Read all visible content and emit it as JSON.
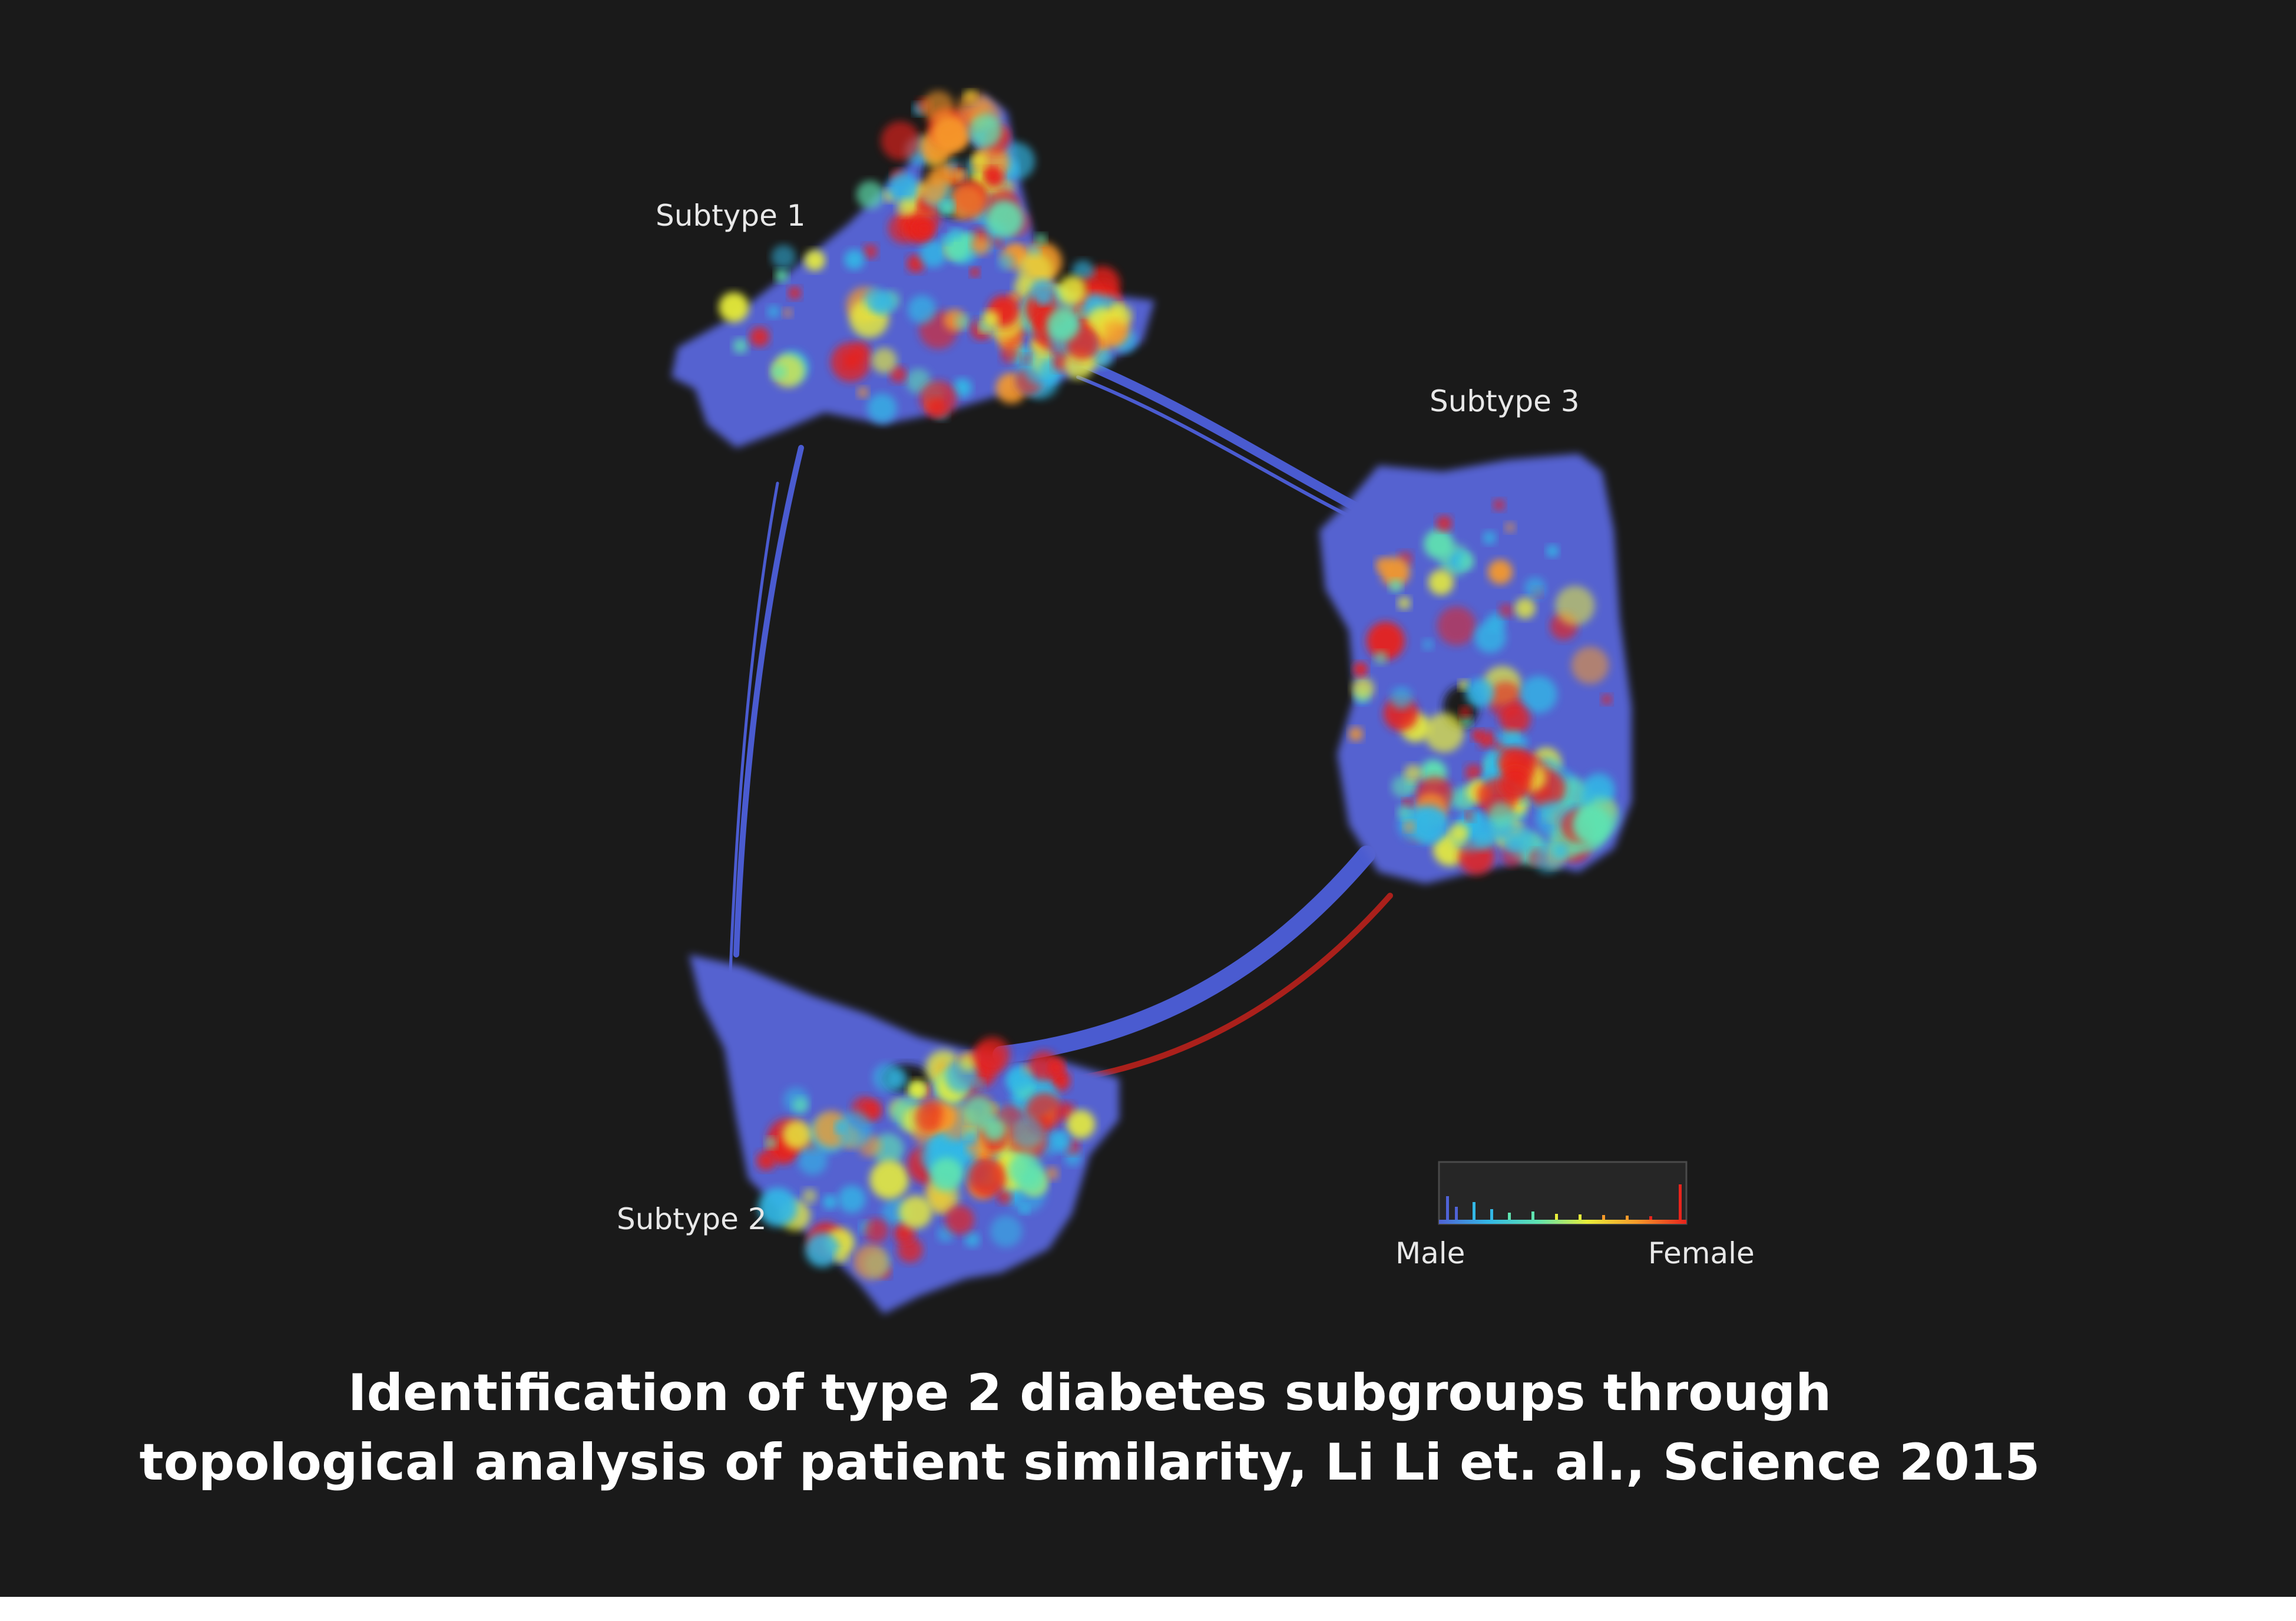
{
  "labels": {
    "subtype_1": "Subtype 1",
    "subtype_2": "Subtype 2",
    "subtype_3": "Subtype 3"
  },
  "legend": {
    "left_label": "Male",
    "right_label": "Female",
    "scale_colors": [
      "#4f63d6",
      "#33b8e6",
      "#5fe3b0",
      "#e8ee3a",
      "#f79a2a",
      "#e8231c"
    ]
  },
  "caption": {
    "line_1": "Identification of type 2 diabetes subgroups through",
    "line_2": "topological analysis of patient similarity, Li Li et. al., Science 2015"
  },
  "colors": {
    "background": "#1a1a1a",
    "network_base": "#5562d0",
    "caption_text": "#ffffff"
  }
}
